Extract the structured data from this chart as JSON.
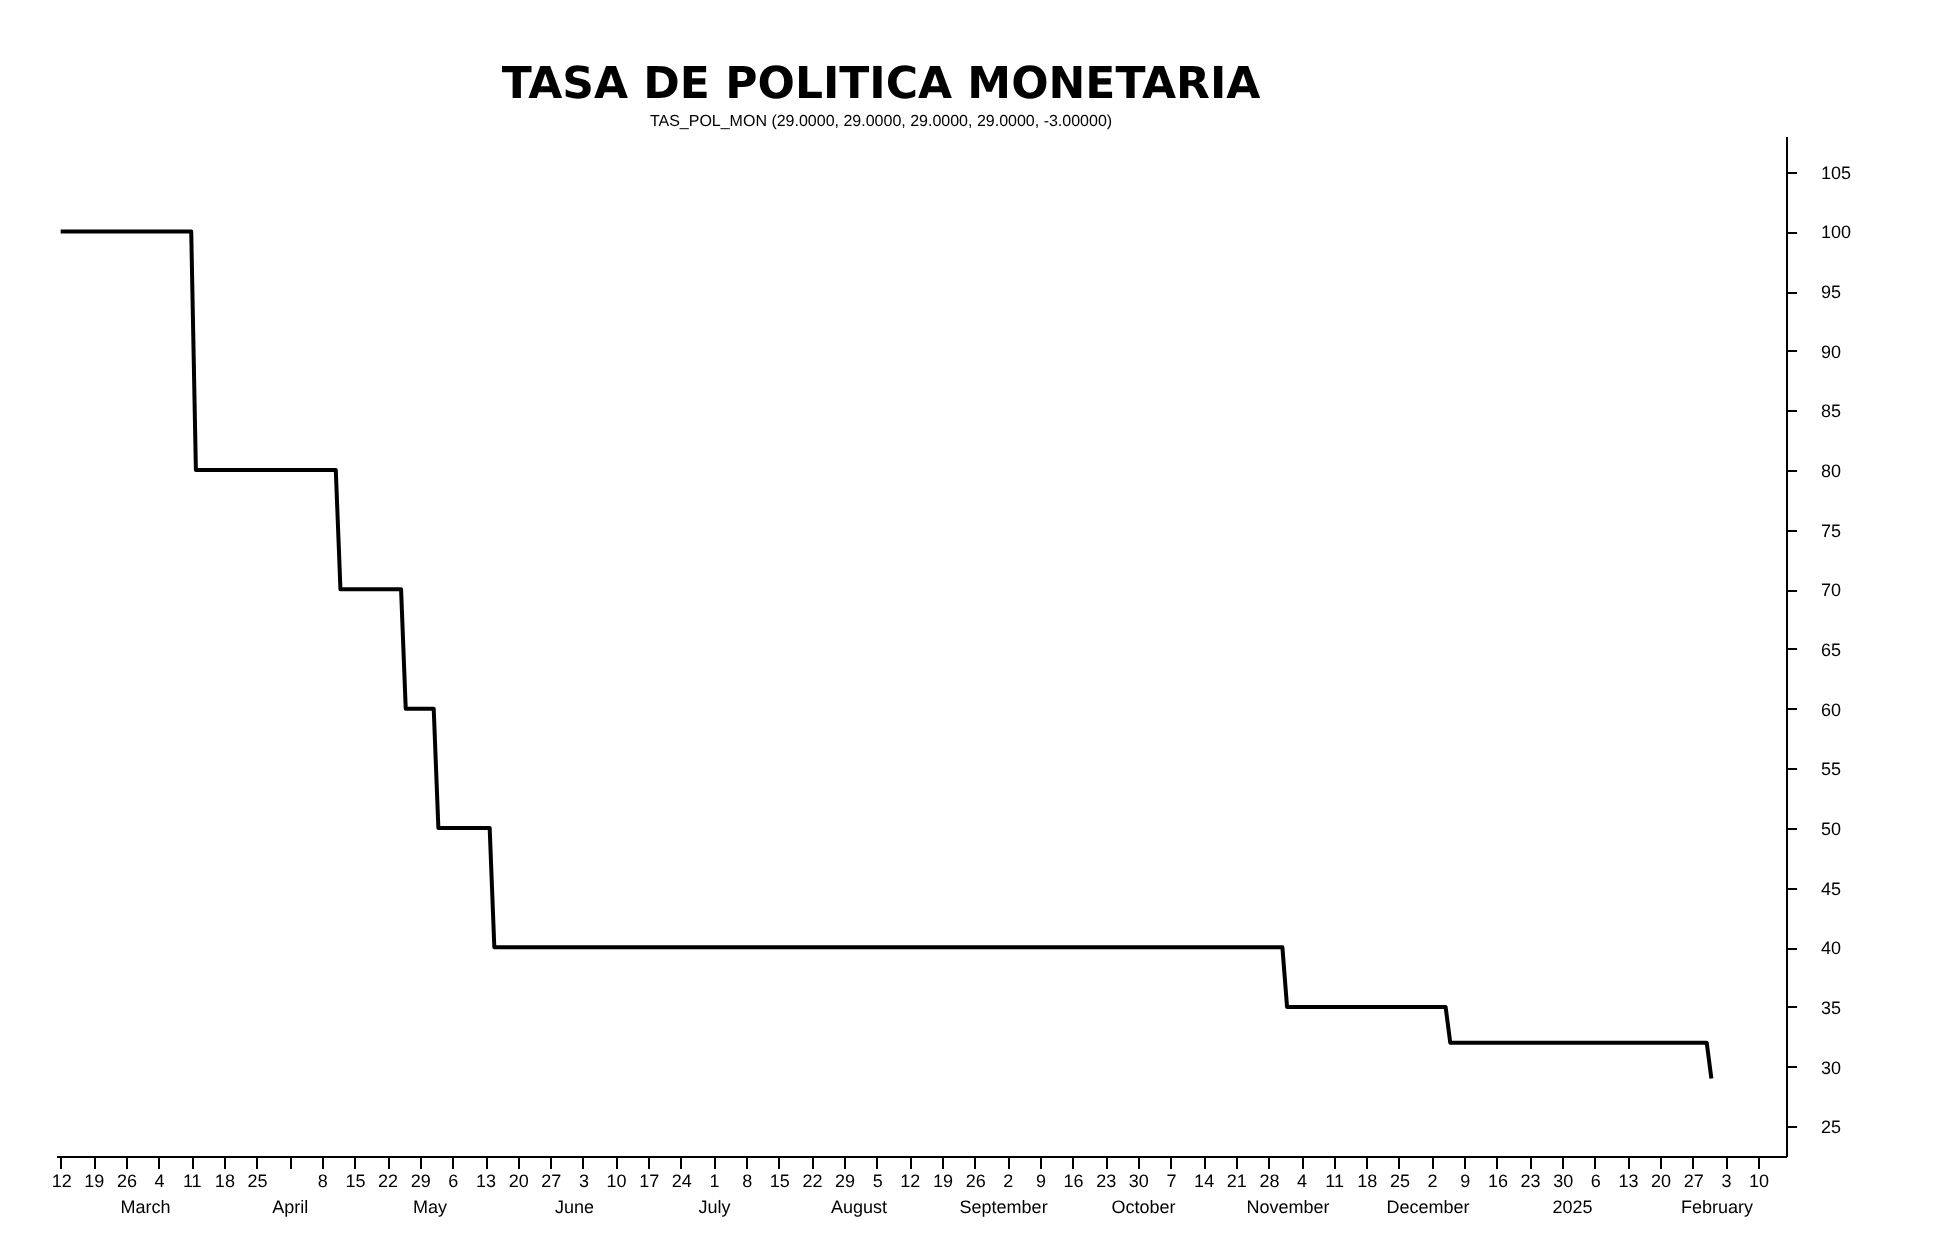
{
  "chart_data": {
    "type": "line",
    "title": "TASA DE POLITICA MONETARIA",
    "subtitle": "TAS_POL_MON (29.0000, 29.0000, 29.0000, 29.0000, -3.00000)",
    "x": [
      "2024-02-12",
      "2024-03-11",
      "2024-03-12",
      "2024-04-11",
      "2024-04-12",
      "2024-04-25",
      "2024-04-26",
      "2024-05-02",
      "2024-05-03",
      "2024-05-14",
      "2024-05-15",
      "2024-10-31",
      "2024-11-01",
      "2024-12-05",
      "2024-12-06",
      "2025-01-30",
      "2025-01-31"
    ],
    "series": [
      {
        "color": "#000000",
        "values": [
          100,
          100,
          80,
          80,
          70,
          70,
          60,
          60,
          50,
          50,
          40,
          40,
          35,
          35,
          32,
          32,
          29
        ]
      }
    ],
    "xlim": [
      "2024-02-11",
      "2025-02-16"
    ],
    "x2lim": [
      "2024-02-11",
      "2025-02-16"
    ],
    "xticks": [
      {
        "value": "2024-02-12",
        "label": "12"
      },
      {
        "value": "2024-02-19",
        "label": "19"
      },
      {
        "value": "2024-02-26",
        "label": "26"
      },
      {
        "value": "2024-03-04",
        "label": "4"
      },
      {
        "value": "2024-03-11",
        "label": "11"
      },
      {
        "value": "2024-03-18",
        "label": "18"
      },
      {
        "value": "2024-03-25",
        "label": "25"
      },
      {
        "value": "2024-04-01",
        "label": null
      },
      {
        "value": "2024-04-08",
        "label": "8"
      },
      {
        "value": "2024-04-15",
        "label": "15"
      },
      {
        "value": "2024-04-22",
        "label": "22"
      },
      {
        "value": "2024-04-29",
        "label": "29"
      },
      {
        "value": "2024-05-06",
        "label": "6"
      },
      {
        "value": "2024-05-13",
        "label": "13"
      },
      {
        "value": "2024-05-20",
        "label": "20"
      },
      {
        "value": "2024-05-27",
        "label": "27"
      },
      {
        "value": "2024-06-03",
        "label": "3"
      },
      {
        "value": "2024-06-10",
        "label": "10"
      },
      {
        "value": "2024-06-17",
        "label": "17"
      },
      {
        "value": "2024-06-24",
        "label": "24"
      },
      {
        "value": "2024-07-01",
        "label": "1"
      },
      {
        "value": "2024-07-08",
        "label": "8"
      },
      {
        "value": "2024-07-15",
        "label": "15"
      },
      {
        "value": "2024-07-22",
        "label": "22"
      },
      {
        "value": "2024-07-29",
        "label": "29"
      },
      {
        "value": "2024-08-05",
        "label": "5"
      },
      {
        "value": "2024-08-12",
        "label": "12"
      },
      {
        "value": "2024-08-19",
        "label": "19"
      },
      {
        "value": "2024-08-26",
        "label": "26"
      },
      {
        "value": "2024-09-02",
        "label": "2"
      },
      {
        "value": "2024-09-09",
        "label": "9"
      },
      {
        "value": "2024-09-16",
        "label": "16"
      },
      {
        "value": "2024-09-23",
        "label": "23"
      },
      {
        "value": "2024-09-30",
        "label": "30"
      },
      {
        "value": "2024-10-07",
        "label": "7"
      },
      {
        "value": "2024-10-14",
        "label": "14"
      },
      {
        "value": "2024-10-21",
        "label": "21"
      },
      {
        "value": "2024-10-28",
        "label": "28"
      },
      {
        "value": "2024-11-04",
        "label": "4"
      },
      {
        "value": "2024-11-11",
        "label": "11"
      },
      {
        "value": "2024-11-18",
        "label": "18"
      },
      {
        "value": "2024-11-25",
        "label": "25"
      },
      {
        "value": "2024-12-02",
        "label": "2"
      },
      {
        "value": "2024-12-09",
        "label": "9"
      },
      {
        "value": "2024-12-16",
        "label": "16"
      },
      {
        "value": "2024-12-23",
        "label": "23"
      },
      {
        "value": "2024-12-30",
        "label": "30"
      },
      {
        "value": "2025-01-06",
        "label": "6"
      },
      {
        "value": "2025-01-13",
        "label": "13"
      },
      {
        "value": "2025-01-20",
        "label": "20"
      },
      {
        "value": "2025-01-27",
        "label": "27"
      },
      {
        "value": "2025-02-03",
        "label": "3"
      },
      {
        "value": "2025-02-10",
        "label": "10"
      }
    ],
    "x2ticks": [
      {
        "value": "2024-03-01",
        "label": "March"
      },
      {
        "value": "2024-04-01",
        "label": "April"
      },
      {
        "value": "2024-05-01",
        "label": "May"
      },
      {
        "value": "2024-06-01",
        "label": "June"
      },
      {
        "value": "2024-07-01",
        "label": "July"
      },
      {
        "value": "2024-08-01",
        "label": "August"
      },
      {
        "value": "2024-09-01",
        "label": "September"
      },
      {
        "value": "2024-10-01",
        "label": "October"
      },
      {
        "value": "2024-11-01",
        "label": "November"
      },
      {
        "value": "2024-12-01",
        "label": "December"
      },
      {
        "value": "2025-01-01",
        "label": "2025"
      },
      {
        "value": "2025-02-01",
        "label": "February"
      }
    ],
    "ylim": [
      22.5,
      108
    ],
    "yticks": [
      25,
      30,
      35,
      40,
      45,
      50,
      55,
      60,
      65,
      70,
      75,
      80,
      85,
      90,
      95,
      100,
      105
    ],
    "grid": false,
    "legend": false,
    "line_style": "solid",
    "marker": "none"
  }
}
